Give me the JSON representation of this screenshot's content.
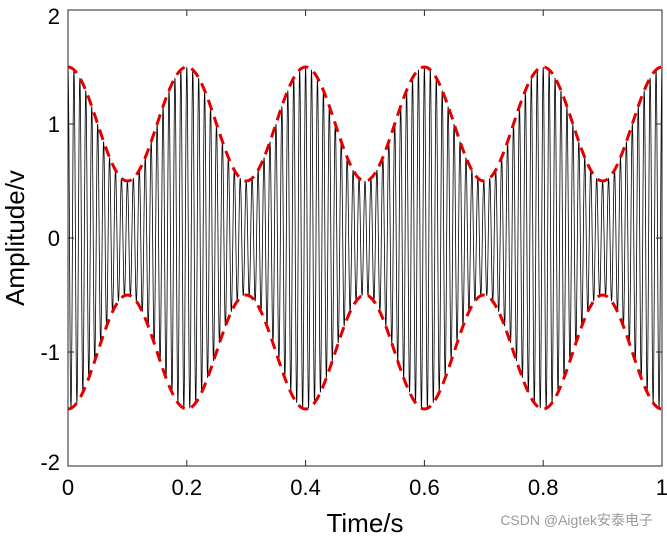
{
  "chart_data": {
    "type": "line",
    "xlabel": "Time/s",
    "ylabel": "Amplitude/v",
    "xlim": [
      0,
      1
    ],
    "ylim": [
      -2,
      2
    ],
    "xticks": [
      0,
      0.2,
      0.4,
      0.6,
      0.8,
      1
    ],
    "xtick_labels": [
      "0",
      "0.2",
      "0.4",
      "0.6",
      "0.8",
      "1"
    ],
    "yticks": [
      -2,
      -1,
      0,
      1,
      2
    ],
    "ytick_labels": [
      "-2",
      "-1",
      "0",
      "1",
      "2"
    ],
    "grid": false,
    "series": [
      {
        "style": "solid",
        "color": "#000000",
        "formula": "(1 + 0.5*cos(2*pi*5*t)) * cos(2*pi*100*t)",
        "carrier_hz": 100,
        "modulation_hz": 5,
        "modulation_depth": 0.5,
        "carrier_amplitude": 1
      },
      {
        "style": "dashed",
        "color": "#e00000",
        "formula": "1 + 0.5*cos(2*pi*5*t)"
      },
      {
        "style": "dashed",
        "color": "#e00000",
        "formula": "-(1 + 0.5*cos(2*pi*5*t))"
      }
    ]
  },
  "watermark": "CSDN @Aigtek安泰电子"
}
